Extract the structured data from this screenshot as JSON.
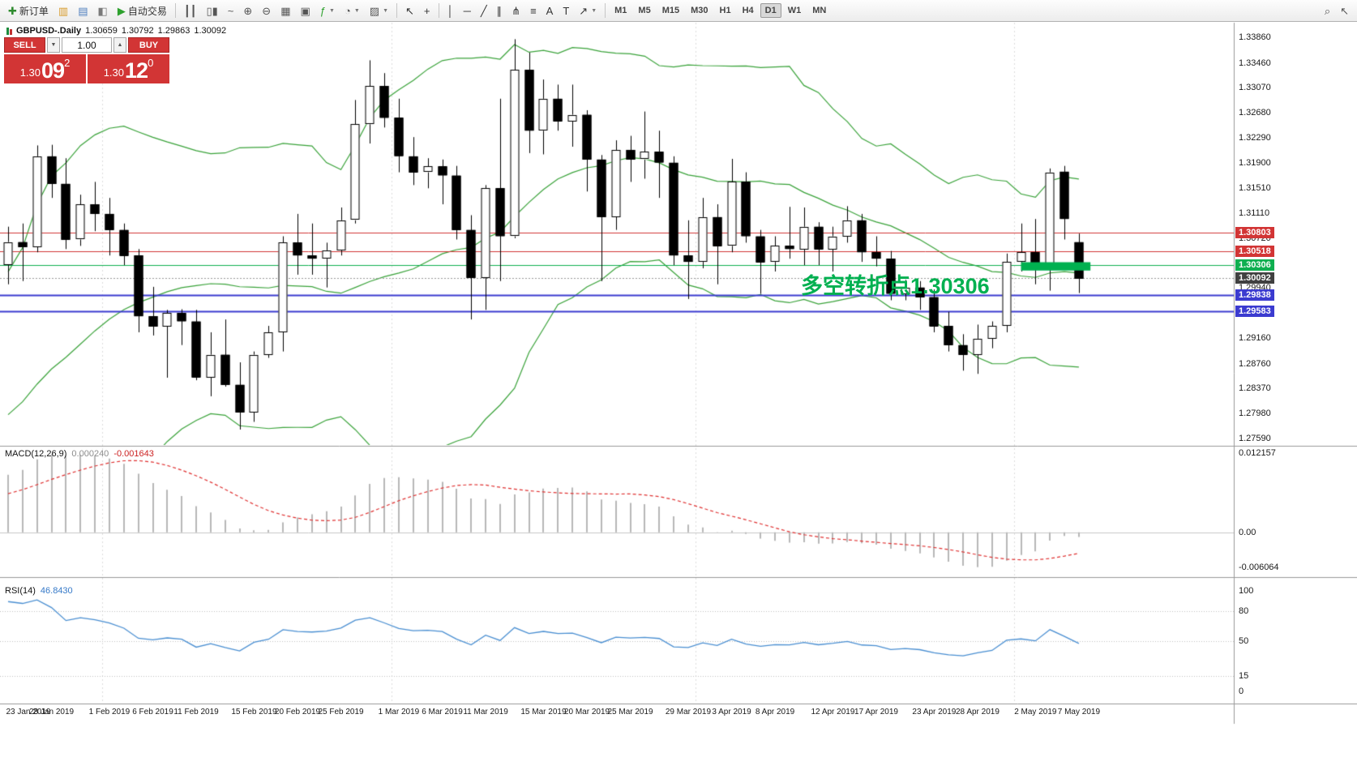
{
  "toolbar": {
    "items": [
      {
        "type": "button",
        "name": "new-order-button",
        "icon": "new-order-icon",
        "glyph": "✚",
        "glyph_color": "#2e8b2e",
        "label": "新订单"
      },
      {
        "type": "button",
        "name": "new-chart-button",
        "icon": "new-chart-icon",
        "glyph": "▥",
        "glyph_color": "#d79b2a"
      },
      {
        "type": "button",
        "name": "profiles-button",
        "icon": "profiles-icon",
        "glyph": "▤",
        "glyph_color": "#4f7fbf"
      },
      {
        "type": "button",
        "name": "data-window-button",
        "icon": "data-window-icon",
        "glyph": "◧",
        "glyph_color": "#7a7a7a"
      },
      {
        "type": "button",
        "name": "auto-trading-button",
        "icon": "play-icon",
        "glyph": "▶",
        "glyph_color": "#2ea12e",
        "label": "自动交易"
      },
      {
        "type": "sep"
      },
      {
        "type": "button",
        "name": "bars-mode-button",
        "icon": "bars-icon",
        "glyph": "┃┃",
        "glyph_color": "#555555"
      },
      {
        "type": "button",
        "name": "candles-mode-button",
        "icon": "candles-icon",
        "glyph": "▯▮",
        "glyph_color": "#555555"
      },
      {
        "type": "button",
        "name": "line-mode-button",
        "icon": "line-chart-icon",
        "glyph": "~",
        "glyph_color": "#555555"
      },
      {
        "type": "button",
        "name": "zoom-in-button",
        "icon": "zoom-in-icon",
        "glyph": "⊕",
        "glyph_color": "#555555"
      },
      {
        "type": "button",
        "name": "zoom-out-button",
        "icon": "zoom-out-icon",
        "glyph": "⊖",
        "glyph_color": "#555555"
      },
      {
        "type": "button",
        "name": "tile-windows-button",
        "icon": "tile-windows-icon",
        "glyph": "▦",
        "glyph_color": "#555555"
      },
      {
        "type": "button",
        "name": "cascade-windows-button",
        "icon": "cascade-windows-icon",
        "glyph": "▣",
        "glyph_color": "#555555"
      },
      {
        "type": "button",
        "name": "indicators-button",
        "icon": "indicators-icon",
        "glyph": "ƒ",
        "glyph_color": "#2ea12e",
        "dropdown": true
      },
      {
        "type": "button",
        "name": "periods-button",
        "icon": "clock-icon",
        "glyph": "◔",
        "glyph_color": "#555555",
        "dropdown": true
      },
      {
        "type": "button",
        "name": "templates-button",
        "icon": "templates-icon",
        "glyph": "▨",
        "glyph_color": "#555555",
        "dropdown": true
      },
      {
        "type": "sep"
      },
      {
        "type": "button",
        "name": "cursor-button",
        "icon": "cursor-icon",
        "glyph": "↖",
        "glyph_color": "#333333"
      },
      {
        "type": "button",
        "name": "crosshair-button",
        "icon": "crosshair-icon",
        "glyph": "+",
        "glyph_color": "#333333"
      },
      {
        "type": "sep"
      },
      {
        "type": "button",
        "name": "vertical-line-button",
        "icon": "vertical-line-icon",
        "glyph": "│",
        "glyph_color": "#333333"
      },
      {
        "type": "button",
        "name": "horizontal-line-button",
        "icon": "horizontal-line-icon",
        "glyph": "─",
        "glyph_color": "#333333"
      },
      {
        "type": "button",
        "name": "trendline-button",
        "icon": "trendline-icon",
        "glyph": "╱",
        "glyph_color": "#333333"
      },
      {
        "type": "button",
        "name": "channel-button",
        "icon": "channel-icon",
        "glyph": "∥",
        "glyph_color": "#333333"
      },
      {
        "type": "button",
        "name": "fibonacci-button",
        "icon": "fibonacci-icon",
        "glyph": "⋔",
        "glyph_color": "#333333"
      },
      {
        "type": "button",
        "name": "cycle-lines-button",
        "icon": "cycle-lines-icon",
        "glyph": "≡",
        "glyph_color": "#333333"
      },
      {
        "type": "button",
        "name": "text-button",
        "icon": "text-icon",
        "glyph": "A",
        "glyph_color": "#333333"
      },
      {
        "type": "button",
        "name": "label-button",
        "icon": "label-icon",
        "glyph": "T",
        "glyph_color": "#333333"
      },
      {
        "type": "button",
        "name": "arrows-button",
        "icon": "arrow-icon",
        "glyph": "↗",
        "glyph_color": "#333333",
        "dropdown": true
      },
      {
        "type": "sep"
      },
      {
        "type": "tf",
        "name": "timeframe-m1",
        "label": "M1"
      },
      {
        "type": "tf",
        "name": "timeframe-m5",
        "label": "M5"
      },
      {
        "type": "tf",
        "name": "timeframe-m15",
        "label": "M15"
      },
      {
        "type": "tf",
        "name": "timeframe-m30",
        "label": "M30"
      },
      {
        "type": "tf",
        "name": "timeframe-h1",
        "label": "H1"
      },
      {
        "type": "tf",
        "name": "timeframe-h4",
        "label": "H4"
      },
      {
        "type": "tf",
        "name": "timeframe-d1",
        "label": "D1",
        "active": true
      },
      {
        "type": "tf",
        "name": "timeframe-w1",
        "label": "W1"
      },
      {
        "type": "tf",
        "name": "timeframe-mn",
        "label": "MN"
      },
      {
        "type": "right"
      },
      {
        "type": "button",
        "name": "search-button",
        "icon": "search-icon",
        "glyph": "⌕",
        "glyph_color": "#555555"
      },
      {
        "type": "button",
        "name": "pointer-button",
        "icon": "pointer-icon",
        "glyph": "↖",
        "glyph_color": "#555555"
      }
    ]
  },
  "header": {
    "symbol_label": "GBPUSD-.Daily",
    "open": "1.30659",
    "high": "1.30792",
    "low": "1.29863",
    "close": "1.30092"
  },
  "one_click": {
    "sell_label": "SELL",
    "buy_label": "BUY",
    "volume": "1.00",
    "stepper_down_icon": "▼",
    "stepper_up_icon": "▲",
    "sell_price": {
      "prefix": "1.30",
      "big": "09",
      "sup": "2"
    },
    "buy_price": {
      "prefix": "1.30",
      "big": "12",
      "sup": "0"
    }
  },
  "indicator_labels": {
    "macd": {
      "name": "MACD(12,26,9)",
      "main": "0.000240",
      "signal": "-0.001643"
    },
    "rsi": {
      "name": "RSI(14)",
      "value": "46.8430"
    }
  },
  "price_axis": {
    "regular": [
      "1.33860",
      "1.33460",
      "1.33070",
      "1.32680",
      "1.32290",
      "1.31900",
      "1.31510",
      "1.31110",
      "1.30720",
      "1.29940",
      "1.29160",
      "1.28760",
      "1.28370",
      "1.27980",
      "1.27590"
    ]
  },
  "macd_axis": [
    {
      "text": "0.012157",
      "value": 0.012157
    },
    {
      "text": "0.00",
      "value": 0
    },
    {
      "text": "-0.006064",
      "value": -0.006064
    }
  ],
  "rsi_axis": [
    {
      "text": "100",
      "value": 100
    },
    {
      "text": "80",
      "value": 80
    },
    {
      "text": "50",
      "value": 50
    },
    {
      "text": "15",
      "value": 15
    },
    {
      "text": "0",
      "value": 0
    }
  ],
  "chart_data": {
    "type": "candlestick",
    "symbol": "GBPUSD",
    "period": "Daily",
    "prepend_closes": [
      1.2625,
      1.2608,
      1.2636,
      1.2655,
      1.265,
      1.2682,
      1.2702,
      1.2716,
      1.2695,
      1.2722,
      1.2746,
      1.2731,
      1.2762,
      1.2786,
      1.2812,
      1.2792,
      1.2832,
      1.2856,
      1.2882,
      1.2906,
      1.2946,
      1.2986
    ],
    "candles": [
      [
        1.303,
        1.309,
        1.3,
        1.3066
      ],
      [
        1.3066,
        1.3095,
        1.3005,
        1.3058
      ],
      [
        1.3058,
        1.3217,
        1.305,
        1.32
      ],
      [
        1.32,
        1.3218,
        1.3135,
        1.3157
      ],
      [
        1.3157,
        1.3197,
        1.3055,
        1.307
      ],
      [
        1.307,
        1.314,
        1.306,
        1.3125
      ],
      [
        1.3125,
        1.316,
        1.3083,
        1.311
      ],
      [
        1.311,
        1.3135,
        1.3045,
        1.3085
      ],
      [
        1.3085,
        1.3095,
        1.303,
        1.3045
      ],
      [
        1.3045,
        1.3055,
        1.2925,
        1.295
      ],
      [
        1.295,
        1.2996,
        1.292,
        1.2934
      ],
      [
        1.2934,
        1.296,
        1.2854,
        1.2955
      ],
      [
        1.2955,
        1.2961,
        1.2905,
        1.2942
      ],
      [
        1.2942,
        1.296,
        1.285,
        1.2855
      ],
      [
        1.2855,
        1.2925,
        1.2825,
        1.289
      ],
      [
        1.289,
        1.2945,
        1.284,
        1.2843
      ],
      [
        1.2843,
        1.2878,
        1.2773,
        1.28
      ],
      [
        1.28,
        1.2895,
        1.2785,
        1.289
      ],
      [
        1.289,
        1.2935,
        1.2885,
        1.2925
      ],
      [
        1.2925,
        1.3075,
        1.2895,
        1.3065
      ],
      [
        1.3065,
        1.311,
        1.3015,
        1.3045
      ],
      [
        1.3045,
        1.3095,
        1.3015,
        1.304
      ],
      [
        1.304,
        1.3065,
        1.2995,
        1.3053
      ],
      [
        1.3053,
        1.312,
        1.3045,
        1.31
      ],
      [
        1.31,
        1.3288,
        1.3095,
        1.325
      ],
      [
        1.325,
        1.335,
        1.322,
        1.331
      ],
      [
        1.331,
        1.333,
        1.3245,
        1.326
      ],
      [
        1.326,
        1.329,
        1.3175,
        1.32
      ],
      [
        1.32,
        1.323,
        1.3155,
        1.3175
      ],
      [
        1.3175,
        1.3197,
        1.315,
        1.3184
      ],
      [
        1.3184,
        1.3195,
        1.3125,
        1.317
      ],
      [
        1.317,
        1.3185,
        1.307,
        1.3085
      ],
      [
        1.3085,
        1.3108,
        1.2945,
        1.301
      ],
      [
        1.301,
        1.3155,
        1.296,
        1.315
      ],
      [
        1.315,
        1.329,
        1.3005,
        1.3075
      ],
      [
        1.3075,
        1.3383,
        1.3072,
        1.3335
      ],
      [
        1.3335,
        1.3362,
        1.3205,
        1.324
      ],
      [
        1.324,
        1.332,
        1.3203,
        1.329
      ],
      [
        1.329,
        1.3312,
        1.324,
        1.3255
      ],
      [
        1.3255,
        1.3312,
        1.3215,
        1.3265
      ],
      [
        1.3265,
        1.3272,
        1.3145,
        1.3195
      ],
      [
        1.3195,
        1.3202,
        1.3005,
        1.3105
      ],
      [
        1.3105,
        1.3225,
        1.3085,
        1.321
      ],
      [
        1.321,
        1.3232,
        1.316,
        1.3195
      ],
      [
        1.3195,
        1.327,
        1.3165,
        1.3207
      ],
      [
        1.3207,
        1.324,
        1.3135,
        1.319
      ],
      [
        1.319,
        1.32,
        1.303,
        1.3045
      ],
      [
        1.3045,
        1.31,
        1.2977,
        1.3035
      ],
      [
        1.3035,
        1.3135,
        1.3025,
        1.3105
      ],
      [
        1.3105,
        1.3125,
        1.3,
        1.306
      ],
      [
        1.306,
        1.3196,
        1.305,
        1.316
      ],
      [
        1.316,
        1.3175,
        1.3065,
        1.3075
      ],
      [
        1.3075,
        1.3085,
        1.2985,
        1.3035
      ],
      [
        1.3035,
        1.3075,
        1.302,
        1.306
      ],
      [
        1.306,
        1.3121,
        1.304,
        1.3055
      ],
      [
        1.3055,
        1.312,
        1.303,
        1.309
      ],
      [
        1.309,
        1.3097,
        1.303,
        1.3055
      ],
      [
        1.3055,
        1.309,
        1.302,
        1.3075
      ],
      [
        1.3075,
        1.3122,
        1.3065,
        1.31
      ],
      [
        1.31,
        1.311,
        1.3035,
        1.305
      ],
      [
        1.305,
        1.3075,
        1.3028,
        1.304
      ],
      [
        1.304,
        1.3052,
        1.2975,
        1.2985
      ],
      [
        1.2985,
        1.3007,
        1.2975,
        1.2995
      ],
      [
        1.2995,
        1.3005,
        1.296,
        1.298
      ],
      [
        1.298,
        1.2992,
        1.2925,
        1.2935
      ],
      [
        1.2935,
        1.2957,
        1.2895,
        1.2905
      ],
      [
        1.2905,
        1.2922,
        1.2865,
        1.289
      ],
      [
        1.289,
        1.2937,
        1.286,
        1.2915
      ],
      [
        1.2915,
        1.2942,
        1.29,
        1.2935
      ],
      [
        1.2935,
        1.3048,
        1.2925,
        1.3035
      ],
      [
        1.3035,
        1.3095,
        1.302,
        1.305
      ],
      [
        1.305,
        1.3102,
        1.3,
        1.303
      ],
      [
        1.303,
        1.3181,
        1.299,
        1.3175
      ],
      [
        1.3176,
        1.3185,
        1.307,
        1.3102
      ],
      [
        1.30659,
        1.30792,
        1.29863,
        1.30092
      ]
    ],
    "date_labels": [
      {
        "text": "23 Jan 2019",
        "index": 0
      },
      {
        "text": "28 Jan 2019",
        "index": 3
      },
      {
        "text": "1 Feb 2019",
        "index": 7
      },
      {
        "text": "6 Feb 2019",
        "index": 10
      },
      {
        "text": "11 Feb 2019",
        "index": 13
      },
      {
        "text": "15 Feb 2019",
        "index": 17
      },
      {
        "text": "20 Feb 2019",
        "index": 20
      },
      {
        "text": "25 Feb 2019",
        "index": 23
      },
      {
        "text": "1 Mar 2019",
        "index": 27
      },
      {
        "text": "6 Mar 2019",
        "index": 30
      },
      {
        "text": "11 Mar 2019",
        "index": 33
      },
      {
        "text": "15 Mar 2019",
        "index": 37
      },
      {
        "text": "20 Mar 2019",
        "index": 40
      },
      {
        "text": "25 Mar 2019",
        "index": 43
      },
      {
        "text": "29 Mar 2019",
        "index": 47
      },
      {
        "text": "3 Apr 2019",
        "index": 50
      },
      {
        "text": "8 Apr 2019",
        "index": 53
      },
      {
        "text": "12 Apr 2019",
        "index": 57
      },
      {
        "text": "17 Apr 2019",
        "index": 60
      },
      {
        "text": "23 Apr 2019",
        "index": 64
      },
      {
        "text": "28 Apr 2019",
        "index": 67
      },
      {
        "text": "2 May 2019",
        "index": 71
      },
      {
        "text": "7 May 2019",
        "index": 74
      }
    ],
    "month_separator_indices": [
      7,
      27,
      48,
      70
    ],
    "indicators": {
      "bollinger": {
        "period": 20,
        "deviation": 2,
        "color": "#3aa33a"
      },
      "macd": {
        "fast": 12,
        "slow": 26,
        "signal_period": 9,
        "histogram_color": "#b8b8b8",
        "signal_color": "#e03131",
        "scale_top": 0.012157,
        "scale_bottom": -0.006064
      },
      "rsi": {
        "period": 14,
        "color": "#4a8fd2",
        "levels": [
          80,
          50,
          15
        ]
      }
    },
    "levels": [
      {
        "price": 1.30803,
        "label": "1.30803",
        "color": "#d23535",
        "label_bg": "#d23535",
        "style": "solid",
        "width": 1
      },
      {
        "price": 1.30518,
        "label": "1.30518",
        "color": "#d23535",
        "label_bg": "#d23535",
        "style": "solid",
        "width": 1
      },
      {
        "price": 1.30306,
        "label": "1.30306",
        "color": "#0faf50",
        "label_bg": "#0faf50",
        "style": "solid",
        "width": 1
      },
      {
        "price": 1.30092,
        "label": "1.30092",
        "color": "#9a9a9a",
        "label_bg": "#404040",
        "style": "dotted",
        "width": 1
      },
      {
        "price": 1.29838,
        "label": "1.29838",
        "color": "#3b3bd0",
        "label_bg": "#3b3bd0",
        "style": "solid",
        "width": 2
      },
      {
        "price": 1.29583,
        "label": "1.29583",
        "color": "#3b3bd0",
        "label_bg": "#3b3bd0",
        "style": "solid",
        "width": 2
      }
    ],
    "highlight_rect": {
      "from_index": 70,
      "to_index": 74.8,
      "price_top": 1.30345,
      "price_bottom": 1.30215,
      "color": "#00b050"
    },
    "annotation": {
      "text": "多空转折点1.30306",
      "color": "#00b050"
    }
  }
}
